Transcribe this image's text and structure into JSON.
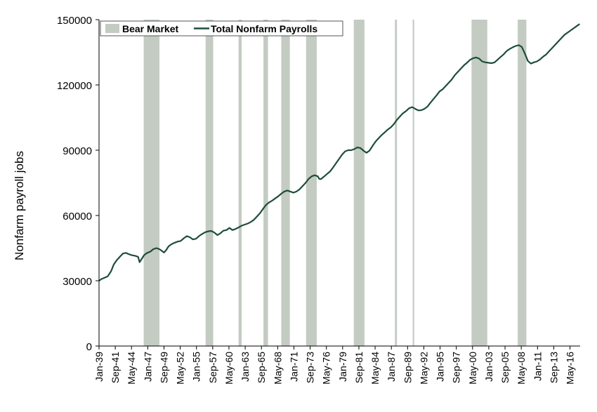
{
  "chart_data": {
    "type": "line",
    "title": "",
    "xlabel": "",
    "ylabel": "Nonfarm payroll jobs",
    "ylim": [
      0,
      150000
    ],
    "xlim": [
      "1939-01",
      "2017-12"
    ],
    "y_ticks": [
      0,
      30000,
      60000,
      90000,
      120000,
      150000
    ],
    "y_tick_labels": [
      "0",
      "30000",
      "60000",
      "90000",
      "120000",
      "150000"
    ],
    "x_tick_labels": [
      "Jan-39",
      "Sep-41",
      "May-44",
      "Jan-47",
      "Sep-49",
      "May-52",
      "Jan-55",
      "Sep-57",
      "May-60",
      "Jan-63",
      "Sep-65",
      "May-68",
      "Jan-71",
      "Sep-73",
      "May-76",
      "Jan-79",
      "Sep-81",
      "May-84",
      "Jan-87",
      "Sep-89",
      "May-92",
      "Jan-95",
      "Sep-97",
      "May-00",
      "Jan-03",
      "Sep-05",
      "May-08",
      "Jan-11",
      "Sep-13",
      "May-16"
    ],
    "x_tick_dates": [
      "1939-01",
      "1941-09",
      "1944-05",
      "1947-01",
      "1949-09",
      "1952-05",
      "1955-01",
      "1957-09",
      "1960-05",
      "1963-01",
      "1965-09",
      "1968-05",
      "1971-01",
      "1973-09",
      "1976-05",
      "1979-01",
      "1981-09",
      "1984-05",
      "1987-01",
      "1989-09",
      "1992-05",
      "1995-01",
      "1997-09",
      "2000-05",
      "2003-01",
      "2005-09",
      "2008-05",
      "2011-01",
      "2013-09",
      "2016-05"
    ],
    "legend": {
      "placement": "top-left",
      "entries": [
        "Bear Market",
        "Total Nonfarm Payrolls"
      ]
    },
    "grid": false,
    "colors": {
      "line": "#1e4d3a",
      "shade": "#c3cbc3",
      "axis": "#000000"
    },
    "series": [
      {
        "name": "Total Nonfarm Payrolls",
        "points": [
          [
            "1939-01",
            30000
          ],
          [
            "1939-06",
            30800
          ],
          [
            "1940-01",
            31500
          ],
          [
            "1940-06",
            32000
          ],
          [
            "1941-01",
            34500
          ],
          [
            "1941-06",
            37500
          ],
          [
            "1941-12",
            39500
          ],
          [
            "1942-06",
            41000
          ],
          [
            "1942-12",
            42500
          ],
          [
            "1943-06",
            42800
          ],
          [
            "1943-12",
            42200
          ],
          [
            "1944-06",
            41700
          ],
          [
            "1944-12",
            41500
          ],
          [
            "1945-06",
            41000
          ],
          [
            "1945-09",
            38500
          ],
          [
            "1946-01",
            40000
          ],
          [
            "1946-06",
            41800
          ],
          [
            "1946-12",
            42800
          ],
          [
            "1947-06",
            43400
          ],
          [
            "1947-12",
            44500
          ],
          [
            "1948-06",
            45000
          ],
          [
            "1948-12",
            44500
          ],
          [
            "1949-06",
            43500
          ],
          [
            "1949-09",
            43000
          ],
          [
            "1950-01",
            44000
          ],
          [
            "1950-06",
            45800
          ],
          [
            "1950-12",
            46800
          ],
          [
            "1951-06",
            47500
          ],
          [
            "1951-12",
            48000
          ],
          [
            "1952-06",
            48300
          ],
          [
            "1952-12",
            49500
          ],
          [
            "1953-06",
            50500
          ],
          [
            "1953-12",
            50000
          ],
          [
            "1954-06",
            49000
          ],
          [
            "1954-12",
            49300
          ],
          [
            "1955-06",
            50500
          ],
          [
            "1955-12",
            51500
          ],
          [
            "1956-06",
            52300
          ],
          [
            "1956-12",
            52700
          ],
          [
            "1957-06",
            52900
          ],
          [
            "1957-12",
            52200
          ],
          [
            "1958-06",
            51000
          ],
          [
            "1958-12",
            51800
          ],
          [
            "1959-06",
            53000
          ],
          [
            "1959-12",
            53300
          ],
          [
            "1960-06",
            54300
          ],
          [
            "1960-12",
            53300
          ],
          [
            "1961-06",
            53800
          ],
          [
            "1961-12",
            54500
          ],
          [
            "1962-06",
            55300
          ],
          [
            "1962-12",
            55800
          ],
          [
            "1963-06",
            56300
          ],
          [
            "1963-12",
            57000
          ],
          [
            "1964-06",
            58000
          ],
          [
            "1964-12",
            59500
          ],
          [
            "1965-06",
            61000
          ],
          [
            "1965-12",
            63000
          ],
          [
            "1966-06",
            64800
          ],
          [
            "1966-12",
            66000
          ],
          [
            "1967-06",
            66800
          ],
          [
            "1967-12",
            67800
          ],
          [
            "1968-06",
            68800
          ],
          [
            "1968-12",
            70000
          ],
          [
            "1969-06",
            71000
          ],
          [
            "1969-12",
            71500
          ],
          [
            "1970-06",
            71000
          ],
          [
            "1970-12",
            70500
          ],
          [
            "1971-06",
            71000
          ],
          [
            "1971-12",
            72000
          ],
          [
            "1972-06",
            73500
          ],
          [
            "1972-12",
            75000
          ],
          [
            "1973-06",
            76800
          ],
          [
            "1973-12",
            78000
          ],
          [
            "1974-06",
            78500
          ],
          [
            "1974-12",
            78000
          ],
          [
            "1975-03",
            76800
          ],
          [
            "1975-06",
            76700
          ],
          [
            "1975-12",
            77800
          ],
          [
            "1976-06",
            79000
          ],
          [
            "1976-12",
            80200
          ],
          [
            "1977-06",
            82000
          ],
          [
            "1977-12",
            84000
          ],
          [
            "1978-06",
            86000
          ],
          [
            "1978-12",
            88000
          ],
          [
            "1979-06",
            89500
          ],
          [
            "1979-12",
            90000
          ],
          [
            "1980-06",
            90000
          ],
          [
            "1980-12",
            90500
          ],
          [
            "1981-06",
            91300
          ],
          [
            "1981-12",
            91000
          ],
          [
            "1982-06",
            89800
          ],
          [
            "1982-12",
            88800
          ],
          [
            "1983-06",
            89800
          ],
          [
            "1983-12",
            92000
          ],
          [
            "1984-06",
            94000
          ],
          [
            "1984-12",
            95500
          ],
          [
            "1985-06",
            97000
          ],
          [
            "1985-12",
            98200
          ],
          [
            "1986-06",
            99500
          ],
          [
            "1986-12",
            100500
          ],
          [
            "1987-06",
            102000
          ],
          [
            "1987-12",
            104000
          ],
          [
            "1988-06",
            105500
          ],
          [
            "1988-12",
            107000
          ],
          [
            "1989-06",
            108000
          ],
          [
            "1989-12",
            109300
          ],
          [
            "1990-06",
            109800
          ],
          [
            "1990-12",
            109000
          ],
          [
            "1991-06",
            108300
          ],
          [
            "1991-12",
            108400
          ],
          [
            "1992-06",
            109000
          ],
          [
            "1992-12",
            110000
          ],
          [
            "1993-06",
            111800
          ],
          [
            "1993-12",
            113500
          ],
          [
            "1994-06",
            115200
          ],
          [
            "1994-12",
            117000
          ],
          [
            "1995-06",
            118000
          ],
          [
            "1995-12",
            119500
          ],
          [
            "1996-06",
            121000
          ],
          [
            "1996-12",
            122500
          ],
          [
            "1997-06",
            124500
          ],
          [
            "1997-12",
            126000
          ],
          [
            "1998-06",
            127500
          ],
          [
            "1998-12",
            129000
          ],
          [
            "1999-06",
            130200
          ],
          [
            "1999-12",
            131500
          ],
          [
            "2000-06",
            132300
          ],
          [
            "2000-12",
            132600
          ],
          [
            "2001-06",
            132100
          ],
          [
            "2001-12",
            130800
          ],
          [
            "2002-06",
            130400
          ],
          [
            "2002-12",
            130200
          ],
          [
            "2003-06",
            130000
          ],
          [
            "2003-12",
            130300
          ],
          [
            "2004-06",
            131500
          ],
          [
            "2004-12",
            132800
          ],
          [
            "2005-06",
            134000
          ],
          [
            "2005-12",
            135500
          ],
          [
            "2006-06",
            136500
          ],
          [
            "2006-12",
            137300
          ],
          [
            "2007-06",
            137900
          ],
          [
            "2007-12",
            138300
          ],
          [
            "2008-06",
            137500
          ],
          [
            "2008-12",
            134500
          ],
          [
            "2009-06",
            131000
          ],
          [
            "2009-12",
            129800
          ],
          [
            "2010-06",
            130400
          ],
          [
            "2010-12",
            130800
          ],
          [
            "2011-06",
            131700
          ],
          [
            "2011-12",
            133000
          ],
          [
            "2012-06",
            134000
          ],
          [
            "2012-12",
            135500
          ],
          [
            "2013-06",
            137000
          ],
          [
            "2013-12",
            138500
          ],
          [
            "2014-06",
            140000
          ],
          [
            "2014-12",
            141500
          ],
          [
            "2015-06",
            143000
          ],
          [
            "2015-12",
            144000
          ],
          [
            "2016-06",
            145000
          ],
          [
            "2016-12",
            146000
          ],
          [
            "2017-06",
            147000
          ],
          [
            "2017-12",
            148000
          ]
        ]
      }
    ],
    "bear_markets": [
      [
        "1946-05",
        "1948-12"
      ],
      [
        "1956-07",
        "1957-10"
      ],
      [
        "1961-12",
        "1962-06"
      ],
      [
        "1966-01",
        "1966-10"
      ],
      [
        "1968-12",
        "1970-05"
      ],
      [
        "1973-01",
        "1974-10"
      ],
      [
        "1980-11",
        "1982-08"
      ],
      [
        "1987-08",
        "1987-12"
      ],
      [
        "1990-07",
        "1990-10"
      ],
      [
        "2000-03",
        "2002-10"
      ],
      [
        "2007-10",
        "2009-03"
      ]
    ]
  }
}
